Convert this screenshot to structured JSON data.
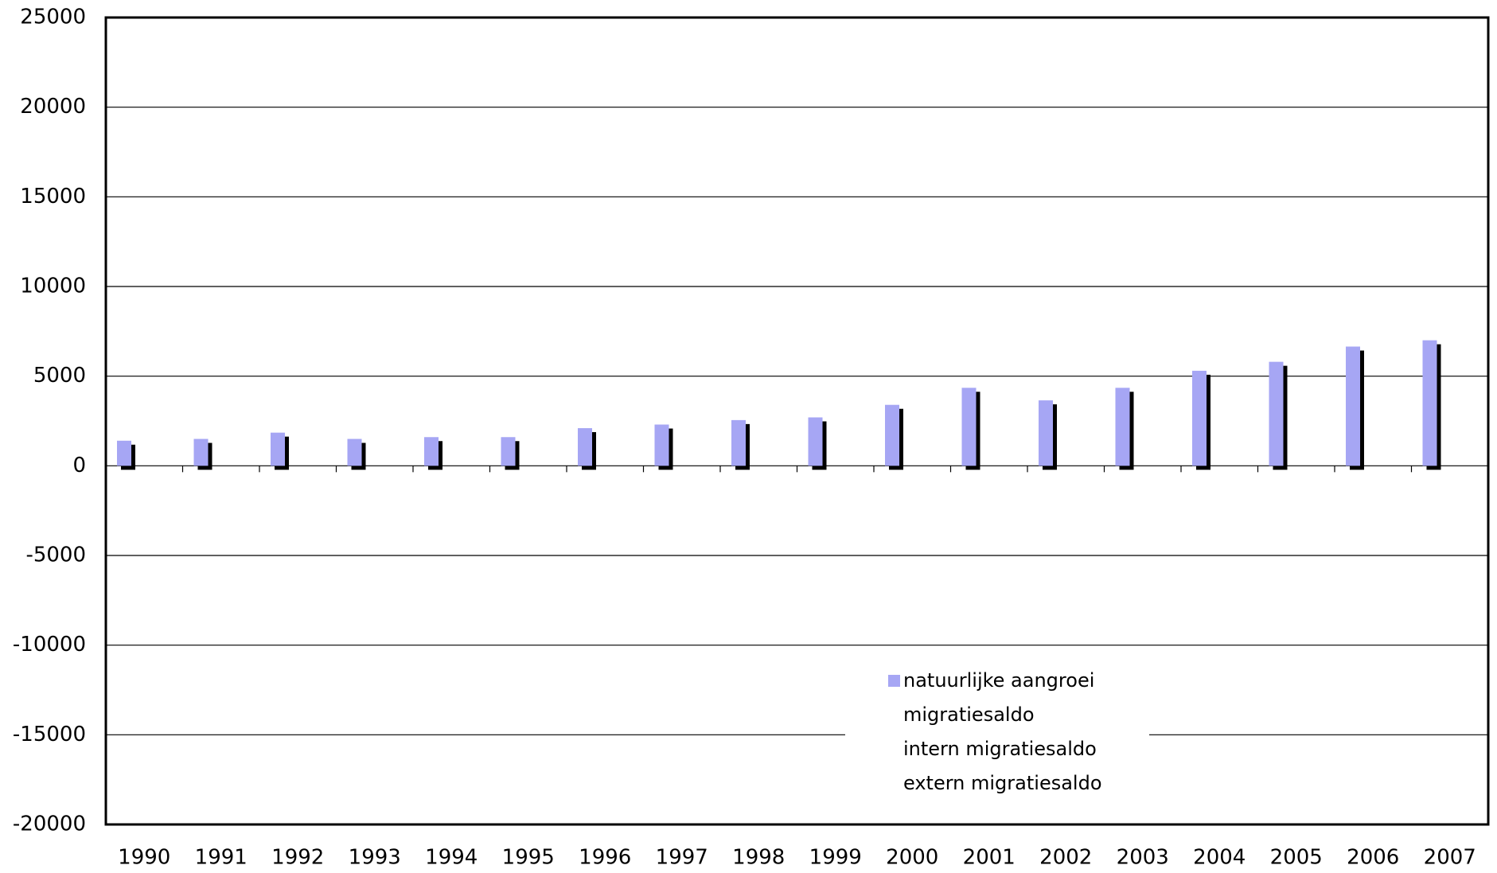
{
  "chart_data": {
    "type": "bar",
    "categories": [
      "1990",
      "1991",
      "1992",
      "1993",
      "1994",
      "1995",
      "1996",
      "1997",
      "1998",
      "1999",
      "2000",
      "2001",
      "2002",
      "2003",
      "2004",
      "2005",
      "2006",
      "2007"
    ],
    "series": [
      {
        "name": "natuurlijke aangroei",
        "color": "#a6a6f4",
        "values": [
          1400,
          1500,
          1850,
          1500,
          1600,
          1600,
          2100,
          2300,
          2550,
          2700,
          3400,
          4350,
          3650,
          4350,
          5300,
          5800,
          6650,
          7000
        ]
      },
      {
        "name": "migratiesaldo",
        "values": [
          null,
          null,
          null,
          null,
          null,
          null,
          null,
          null,
          null,
          null,
          null,
          null,
          null,
          null,
          null,
          null,
          null,
          null
        ]
      },
      {
        "name": "intern migratiesaldo",
        "values": [
          null,
          null,
          null,
          null,
          null,
          null,
          null,
          null,
          null,
          null,
          null,
          null,
          null,
          null,
          null,
          null,
          null,
          null
        ]
      },
      {
        "name": "extern migratiesaldo",
        "values": [
          null,
          null,
          null,
          null,
          null,
          null,
          null,
          null,
          null,
          null,
          null,
          null,
          null,
          null,
          null,
          null,
          null,
          null
        ]
      }
    ],
    "ylim": [
      -20000,
      25000
    ],
    "yticks": [
      -20000,
      -15000,
      -10000,
      -5000,
      0,
      5000,
      10000,
      15000,
      20000,
      25000
    ],
    "grid": true,
    "legend": "lower center"
  }
}
